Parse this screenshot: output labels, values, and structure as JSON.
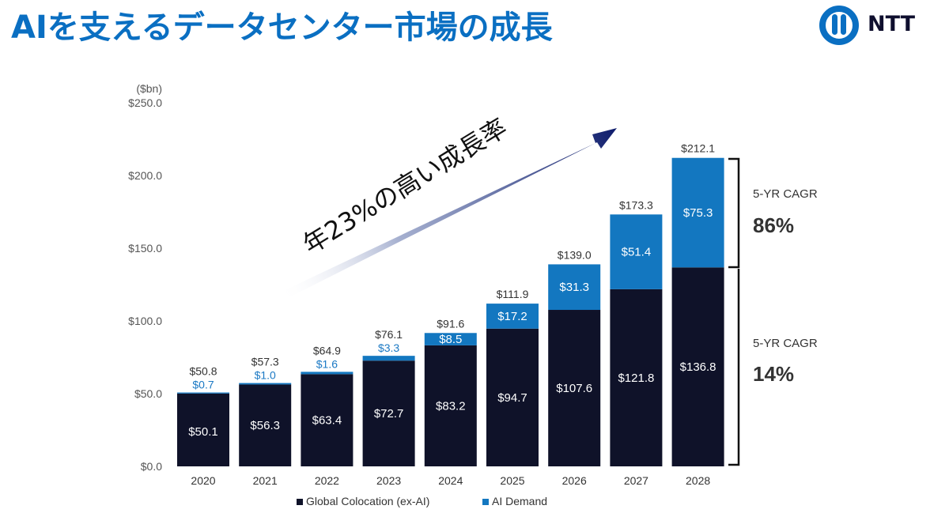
{
  "header": {
    "title": "AIを支えるデータセンター市場の成長",
    "logo_text": "NTT"
  },
  "annotations": {
    "growth_text": "年23%の高い成長率",
    "cagr_ai_label": "5-YR CAGR",
    "cagr_ai_value": "86%",
    "cagr_colo_label": "5-YR CAGR",
    "cagr_colo_value": "14%"
  },
  "colors": {
    "title": "#0a6fc2",
    "colocation": "#0f1229",
    "ai_demand": "#1377c0",
    "ai_small_label": "#1b79c4",
    "axis_text": "#555555"
  },
  "chart_data": {
    "type": "bar",
    "stacked": true,
    "unit_label": "($bn)",
    "categories": [
      "2020",
      "2021",
      "2022",
      "2023",
      "2024",
      "2025",
      "2026",
      "2027",
      "2028"
    ],
    "series": [
      {
        "name": "Global Colocation (ex-AI)",
        "values": [
          50.1,
          56.3,
          63.4,
          72.7,
          83.2,
          94.7,
          107.6,
          121.8,
          136.8
        ],
        "labels": [
          "$50.1",
          "$56.3",
          "$63.4",
          "$72.7",
          "$83.2",
          "$94.7",
          "$107.6",
          "$121.8",
          "$136.8"
        ]
      },
      {
        "name": "AI Demand",
        "values": [
          0.7,
          1.0,
          1.6,
          3.3,
          8.5,
          17.2,
          31.3,
          51.4,
          75.3
        ],
        "labels": [
          "$0.7",
          "$1.0",
          "$1.6",
          "$3.3",
          "$8.5",
          "$17.2",
          "$31.3",
          "$51.4",
          "$75.3"
        ]
      }
    ],
    "totals": [
      50.8,
      57.3,
      64.9,
      76.1,
      91.6,
      111.9,
      139.0,
      173.3,
      212.1
    ],
    "total_labels": [
      "$50.8",
      "$57.3",
      "$64.9",
      "$76.1",
      "$91.6",
      "$111.9",
      "$139.0",
      "$173.3",
      "$212.1"
    ],
    "y_ticks": [
      "$0.0",
      "$50.0",
      "$100.0",
      "$150.0",
      "$200.0",
      "$250.0"
    ],
    "y_tick_values": [
      0,
      50,
      100,
      150,
      200,
      250
    ],
    "ylim": [
      0,
      250
    ],
    "grid": false,
    "legend_position": "bottom-center"
  }
}
